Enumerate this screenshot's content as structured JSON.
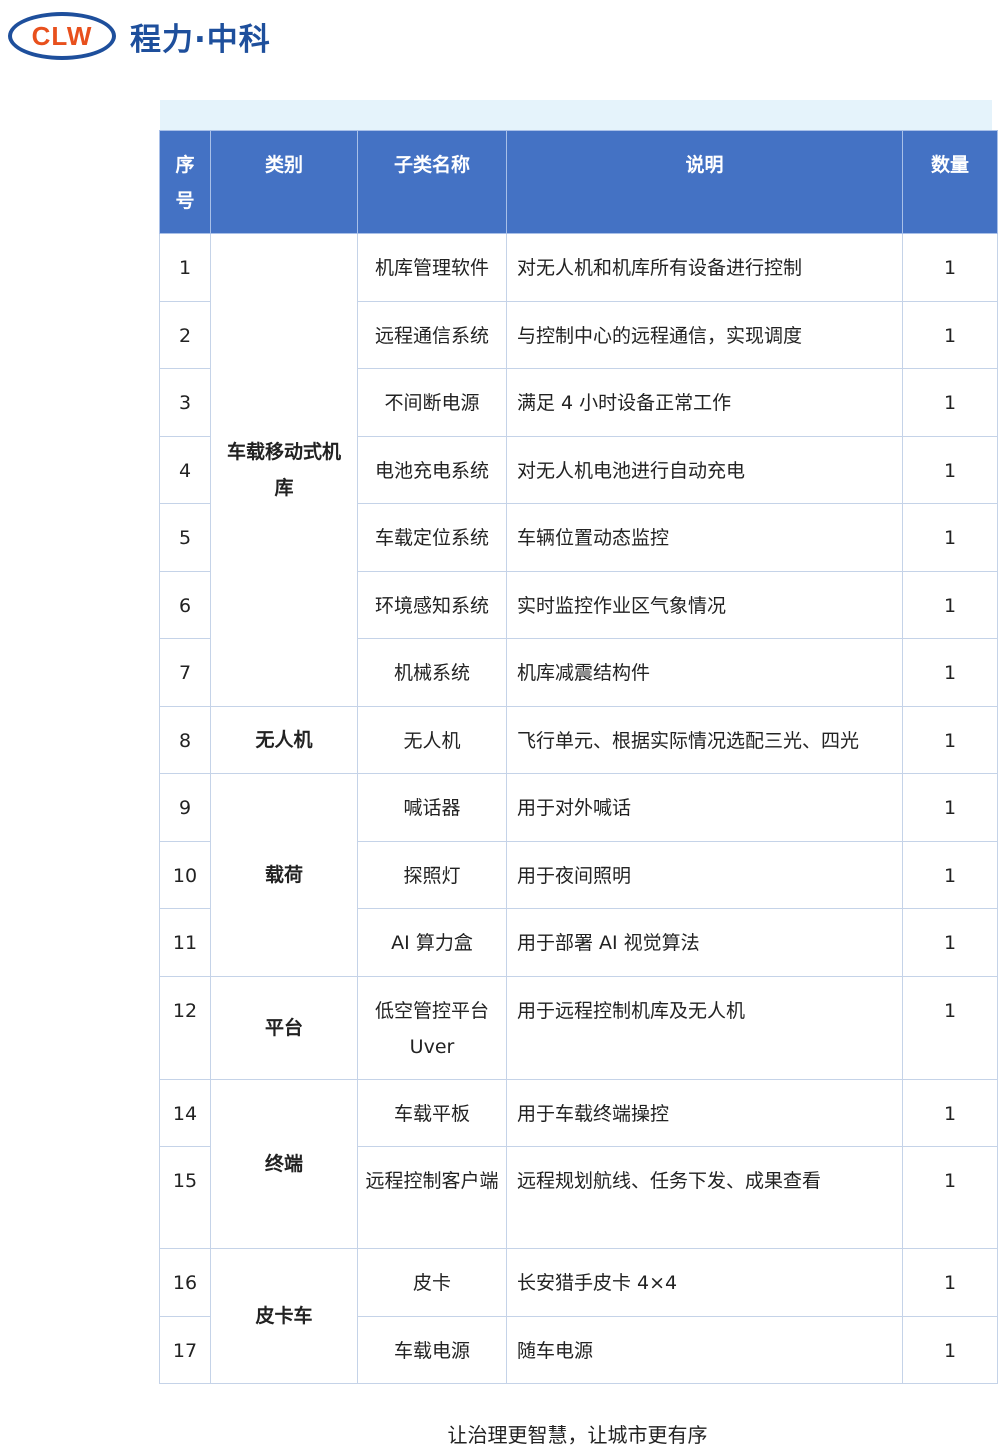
{
  "logo": {
    "mark": "CLW",
    "name": "程力·中科"
  },
  "table": {
    "headers": [
      "序号",
      "类别",
      "子类名称",
      "说明",
      "数量"
    ],
    "rows": [
      {
        "no": "1",
        "category": "车载移动式机库",
        "sub": "机库管理软件",
        "desc": "对无人机和机库所有设备进行控制",
        "qty": "1"
      },
      {
        "no": "2",
        "sub": "远程通信系统",
        "desc": "与控制中心的远程通信，实现调度",
        "qty": "1"
      },
      {
        "no": "3",
        "sub": "不间断电源",
        "desc": "满足 4 小时设备正常工作",
        "qty": "1"
      },
      {
        "no": "4",
        "sub": "电池充电系统",
        "desc": "对无人机电池进行自动充电",
        "qty": "1"
      },
      {
        "no": "5",
        "sub": "车载定位系统",
        "desc": "车辆位置动态监控",
        "qty": "1"
      },
      {
        "no": "6",
        "sub": "环境感知系统",
        "desc": "实时监控作业区气象情况",
        "qty": "1"
      },
      {
        "no": "7",
        "sub": "机械系统",
        "desc": "机库减震结构件",
        "qty": "1"
      },
      {
        "no": "8",
        "category": "无人机",
        "sub": "无人机",
        "desc": "飞行单元、根据实际情况选配三光、四光",
        "qty": "1"
      },
      {
        "no": "9",
        "category": "载荷",
        "sub": "喊话器",
        "desc": "用于对外喊话",
        "qty": "1"
      },
      {
        "no": "10",
        "sub": "探照灯",
        "desc": "用于夜间照明",
        "qty": "1"
      },
      {
        "no": "11",
        "sub": "AI 算力盒",
        "desc": "用于部署 AI 视觉算法",
        "qty": "1"
      },
      {
        "no": "12",
        "category": "平台",
        "sub": "低空管控平台 Uver",
        "desc": "用于远程控制机库及无人机",
        "qty": "1"
      },
      {
        "no": "14",
        "category": "终端",
        "sub": "车载平板",
        "desc": "用于车载终端操控",
        "qty": "1"
      },
      {
        "no": "15",
        "sub": "远程控制客户端",
        "desc": "远程规划航线、任务下发、成果查看",
        "qty": "1"
      },
      {
        "no": "16",
        "category": "皮卡车",
        "sub": "皮卡",
        "desc": "长安猎手皮卡 4×4",
        "qty": "1"
      },
      {
        "no": "17",
        "sub": "车载电源",
        "desc": "随车电源",
        "qty": "1"
      }
    ]
  },
  "slogan": "让治理更智慧，让城市更有序",
  "colors": {
    "header_bg": "#4472c4",
    "brand_blue": "#1e4f9c",
    "brand_orange": "#e8501d"
  }
}
